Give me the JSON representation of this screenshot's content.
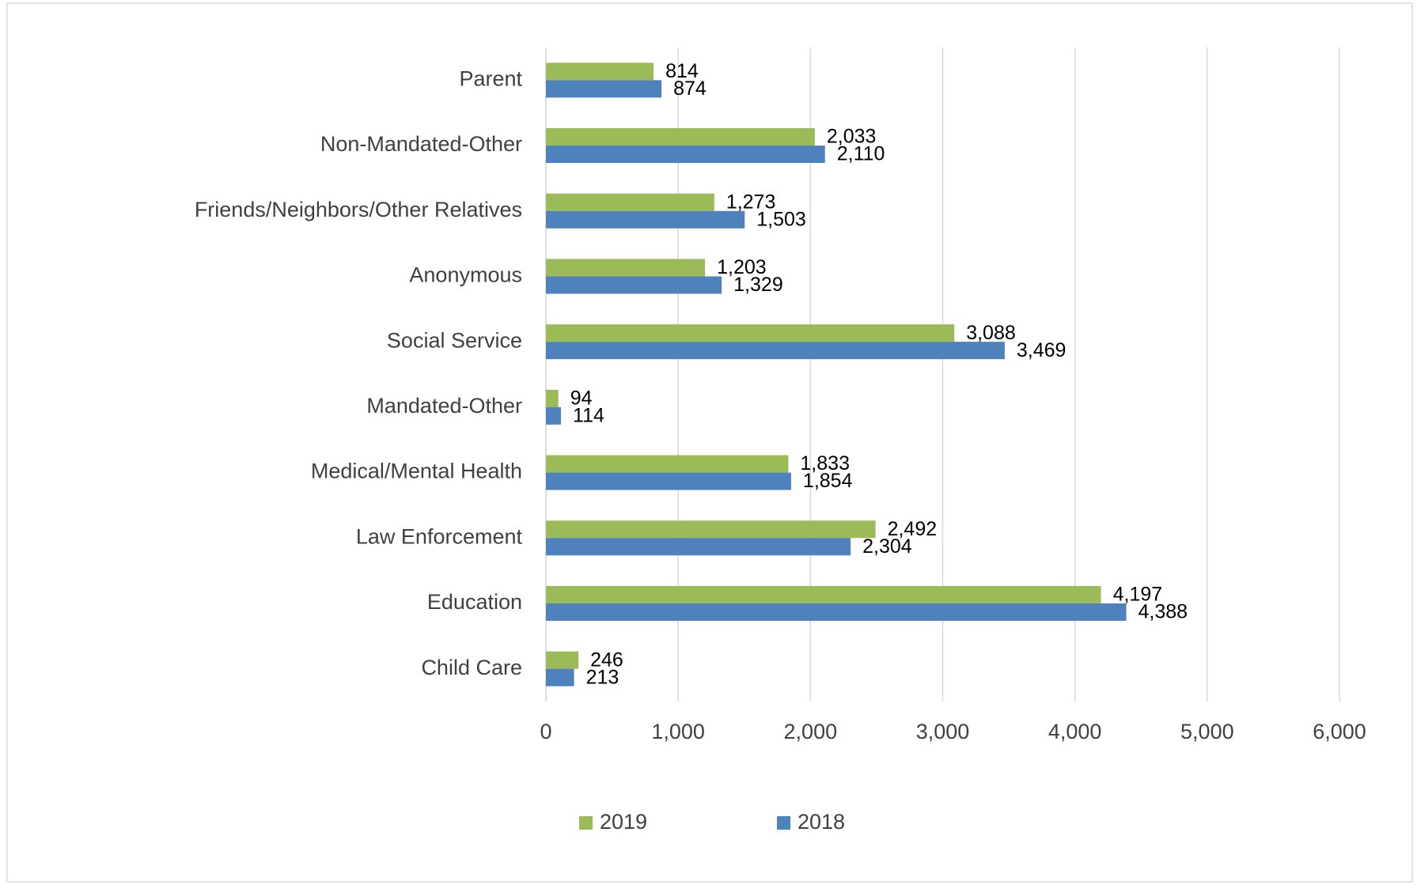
{
  "chart_data": {
    "type": "bar",
    "orientation": "horizontal",
    "categories": [
      "Parent",
      "Non-Mandated-Other",
      "Friends/Neighbors/Other Relatives",
      "Anonymous",
      "Social Service",
      "Mandated-Other",
      "Medical/Mental Health",
      "Law Enforcement",
      "Education",
      "Child Care"
    ],
    "series": [
      {
        "name": "2019",
        "color": "#9bbb59",
        "values": [
          814,
          2033,
          1273,
          1203,
          3088,
          94,
          1833,
          2492,
          4197,
          246
        ],
        "value_labels": [
          "814",
          "2,033",
          "1,273",
          "1,203",
          "3,088",
          "94",
          "1,833",
          "2,492",
          "4,197",
          "246"
        ]
      },
      {
        "name": "2018",
        "color": "#4f81bd",
        "values": [
          874,
          2110,
          1503,
          1329,
          3469,
          114,
          1854,
          2304,
          4388,
          213
        ],
        "value_labels": [
          "874",
          "2,110",
          "1,503",
          "1,329",
          "3,469",
          "114",
          "1,854",
          "2,304",
          "4,388",
          "213"
        ]
      }
    ],
    "xlim": [
      0,
      6000
    ],
    "xticks": [
      0,
      {
        "value": 1000,
        "label": "1,000"
      },
      {
        "value": 2000,
        "label": "2,000"
      },
      {
        "value": 3000,
        "label": "3,000"
      },
      {
        "value": 4000,
        "label": "4,000"
      },
      {
        "value": 5000,
        "label": "5,000"
      },
      {
        "value": 6000,
        "label": "6,000"
      }
    ],
    "grid": true,
    "legend": "bottom"
  }
}
